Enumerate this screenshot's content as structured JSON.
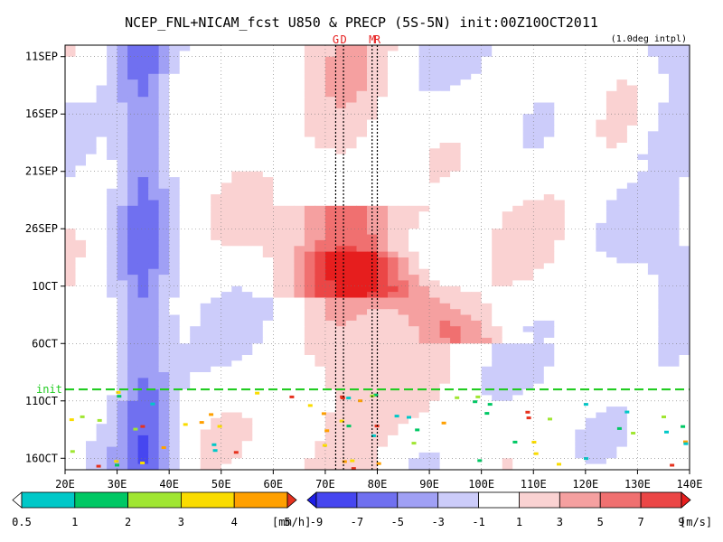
{
  "chart_data": {
    "type": "heatmap",
    "title": "NCEP_FNL+NICAM_fcst U850 & PRECP (5S-5N) init:00Z10OCT2011",
    "subtitle": "(1.0deg intpl)",
    "x_ticks": [
      "20E",
      "30E",
      "40E",
      "50E",
      "60E",
      "70E",
      "80E",
      "90E",
      "100E",
      "110E",
      "120E",
      "130E",
      "140E"
    ],
    "x_range": [
      20,
      140
    ],
    "y_ticks": [
      "11SEP",
      "16SEP",
      "21SEP",
      "26SEP",
      "1OCT",
      "6OCT",
      "11OCT",
      "16OCT"
    ],
    "y_range": [
      "10SEP2011",
      "17OCT2011"
    ],
    "markers": {
      "vertical_lines": [
        {
          "label": "G",
          "lon": 72
        },
        {
          "label": "D",
          "lon": 73.5
        },
        {
          "label": "M",
          "lon": 79
        },
        {
          "label": "R",
          "lon": 80
        }
      ],
      "init_line": {
        "label": "init",
        "date": "10OCT2011",
        "color": "#22cc22"
      }
    },
    "precip_colorbar": {
      "unit": "[mm/h]",
      "ticks": [
        "0.5",
        "1",
        "2",
        "3",
        "4",
        "5"
      ],
      "colors": [
        "#ffffff",
        "#00c8c8",
        "#00c864",
        "#a0e632",
        "#fadc00",
        "#ffa000",
        "#e6321e"
      ]
    },
    "u850_colorbar": {
      "unit": "[m/s]",
      "ticks": [
        "-9",
        "-7",
        "-5",
        "-3",
        "-1",
        "1",
        "3",
        "5",
        "7",
        "9"
      ],
      "colors": [
        "#1e1ee6",
        "#4646f0",
        "#7070f0",
        "#a0a0f5",
        "#ccccfa",
        "#ffffff",
        "#fad2d2",
        "#f5a0a0",
        "#f07070",
        "#eb4646",
        "#e61e1e"
      ]
    }
  }
}
